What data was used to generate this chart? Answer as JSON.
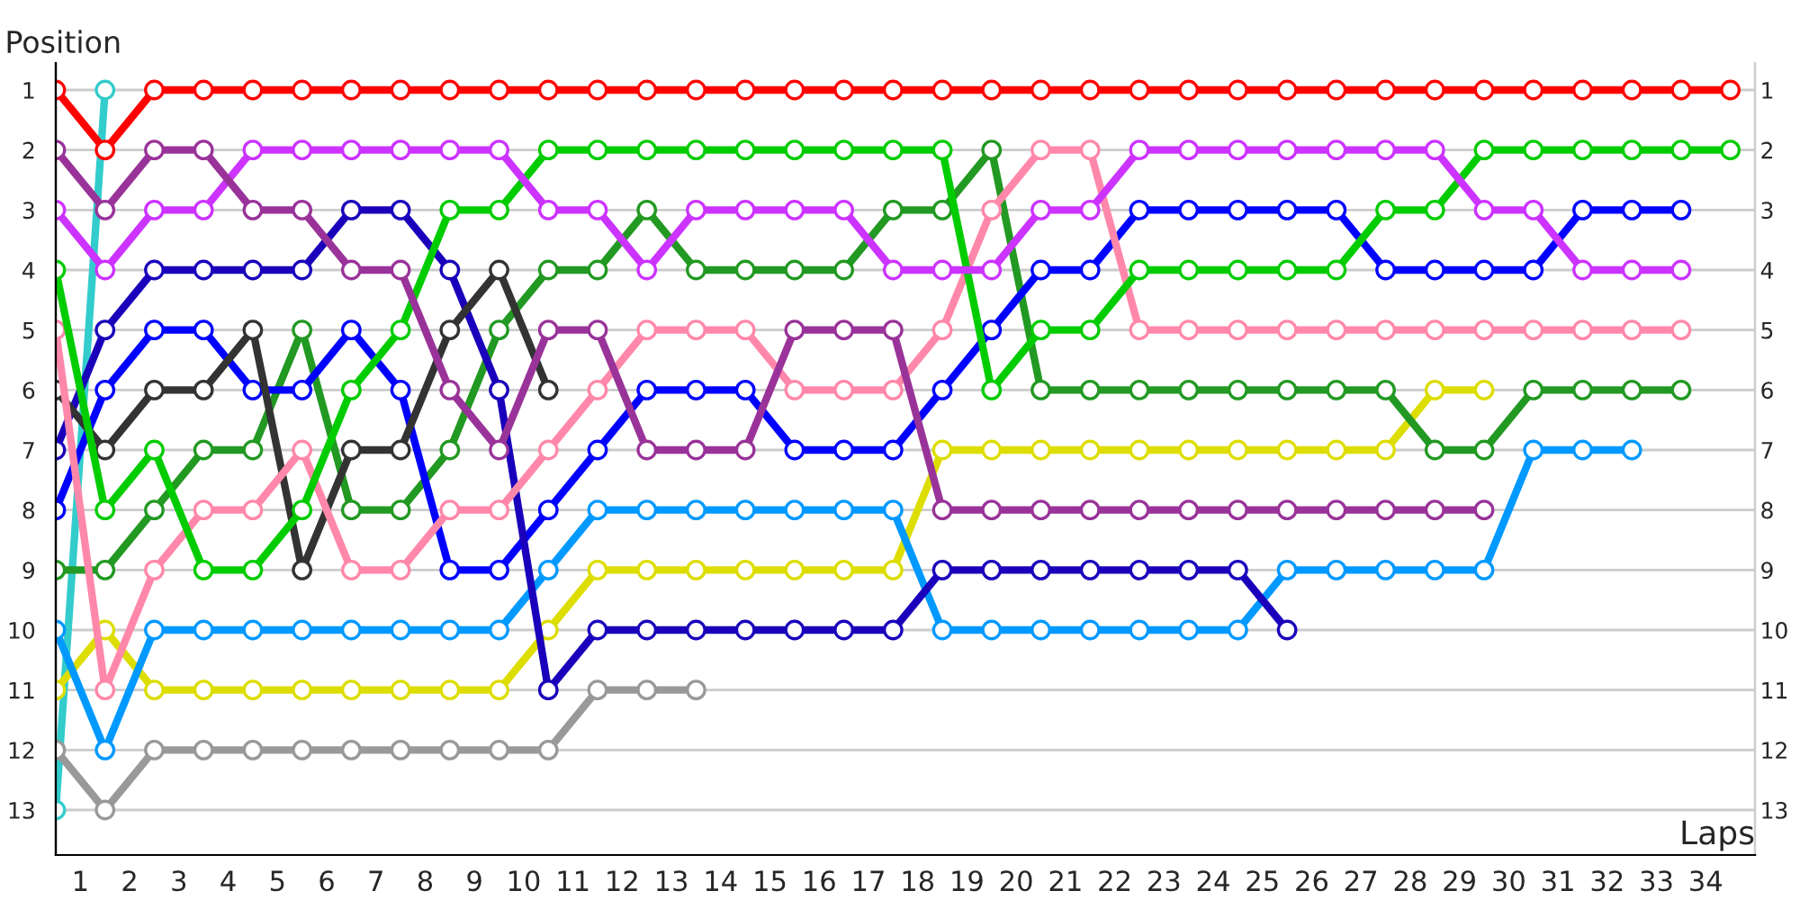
{
  "chart_data": {
    "type": "line",
    "xlabel": "Laps",
    "ylabel": "Position",
    "marker": "circle",
    "grid": true,
    "legend": false,
    "x": [
      0,
      1,
      2,
      3,
      4,
      5,
      6,
      7,
      8,
      9,
      10,
      11,
      12,
      13,
      14,
      15,
      16,
      17,
      18,
      19,
      20,
      21,
      22,
      23,
      24,
      25,
      26,
      27,
      28,
      29,
      30,
      31,
      32,
      33,
      34
    ],
    "xlim": [
      0,
      34.5
    ],
    "xticks": [
      {
        "value": 0.5,
        "label": "1"
      },
      {
        "value": 1.5,
        "label": "2"
      },
      {
        "value": 2.5,
        "label": "3"
      },
      {
        "value": 3.5,
        "label": "4"
      },
      {
        "value": 4.5,
        "label": "5"
      },
      {
        "value": 5.5,
        "label": "6"
      },
      {
        "value": 6.5,
        "label": "7"
      },
      {
        "value": 7.5,
        "label": "8"
      },
      {
        "value": 8.5,
        "label": "9"
      },
      {
        "value": 9.5,
        "label": "10"
      },
      {
        "value": 10.5,
        "label": "11"
      },
      {
        "value": 11.5,
        "label": "12"
      },
      {
        "value": 12.5,
        "label": "13"
      },
      {
        "value": 13.5,
        "label": "14"
      },
      {
        "value": 14.5,
        "label": "15"
      },
      {
        "value": 15.5,
        "label": "16"
      },
      {
        "value": 16.5,
        "label": "17"
      },
      {
        "value": 17.5,
        "label": "18"
      },
      {
        "value": 18.5,
        "label": "19"
      },
      {
        "value": 19.5,
        "label": "20"
      },
      {
        "value": 20.5,
        "label": "21"
      },
      {
        "value": 21.5,
        "label": "22"
      },
      {
        "value": 22.5,
        "label": "23"
      },
      {
        "value": 23.5,
        "label": "24"
      },
      {
        "value": 24.5,
        "label": "25"
      },
      {
        "value": 25.5,
        "label": "26"
      },
      {
        "value": 26.5,
        "label": "27"
      },
      {
        "value": 27.5,
        "label": "28"
      },
      {
        "value": 28.5,
        "label": "29"
      },
      {
        "value": 29.5,
        "label": "30"
      },
      {
        "value": 30.5,
        "label": "31"
      },
      {
        "value": 31.5,
        "label": "32"
      },
      {
        "value": 32.5,
        "label": "33"
      },
      {
        "value": 33.5,
        "label": "34"
      }
    ],
    "ylim": [
      13.75,
      0.55
    ],
    "yticks": [
      1,
      2,
      3,
      4,
      5,
      6,
      7,
      8,
      9,
      10,
      11,
      12,
      13
    ],
    "y2lim": [
      13.75,
      0.55
    ],
    "y2ticks": [
      1,
      2,
      3,
      4,
      5,
      6,
      7,
      8,
      9,
      10,
      11,
      12,
      13
    ],
    "series": [
      {
        "color": "#ff0000",
        "values": [
          1,
          2,
          1,
          1,
          1,
          1,
          1,
          1,
          1,
          1,
          1,
          1,
          1,
          1,
          1,
          1,
          1,
          1,
          1,
          1,
          1,
          1,
          1,
          1,
          1,
          1,
          1,
          1,
          1,
          1,
          1,
          1,
          1,
          1,
          1
        ]
      },
      {
        "color": "#993399",
        "values": [
          2,
          3,
          2,
          2,
          3,
          3,
          4,
          4,
          6,
          7,
          5,
          5,
          7,
          7,
          7,
          5,
          5,
          5,
          8,
          8,
          8,
          8,
          8,
          8,
          8,
          8,
          8,
          8,
          8,
          8,
          null,
          null,
          null,
          null,
          null
        ]
      },
      {
        "color": "#cc33ff",
        "values": [
          3,
          4,
          3,
          3,
          2,
          2,
          2,
          2,
          2,
          2,
          3,
          3,
          4,
          3,
          3,
          3,
          3,
          4,
          4,
          4,
          3,
          3,
          2,
          2,
          2,
          2,
          2,
          2,
          2,
          3,
          3,
          4,
          4,
          4,
          null
        ]
      },
      {
        "color": "#00cc00",
        "values": [
          4,
          8,
          7,
          9,
          9,
          8,
          6,
          5,
          3,
          3,
          2,
          2,
          2,
          2,
          2,
          2,
          2,
          2,
          2,
          6,
          5,
          5,
          4,
          4,
          4,
          4,
          4,
          3,
          3,
          2,
          2,
          2,
          2,
          2,
          2
        ]
      },
      {
        "color": "#ff88aa",
        "values": [
          5,
          11,
          9,
          8,
          8,
          7,
          9,
          9,
          8,
          8,
          7,
          6,
          5,
          5,
          5,
          6,
          6,
          6,
          5,
          3,
          2,
          2,
          5,
          5,
          5,
          5,
          5,
          5,
          5,
          5,
          5,
          5,
          5,
          5,
          null
        ]
      },
      {
        "color": "#333333",
        "values": [
          6,
          7,
          6,
          6,
          5,
          9,
          7,
          7,
          5,
          4,
          6,
          null,
          null,
          null,
          null,
          null,
          null,
          null,
          null,
          null,
          null,
          null,
          null,
          null,
          null,
          null,
          null,
          null,
          null,
          null,
          null,
          null,
          null,
          null,
          null
        ]
      },
      {
        "color": "#1a00bb",
        "values": [
          7,
          5,
          4,
          4,
          4,
          4,
          3,
          3,
          4,
          6,
          11,
          10,
          10,
          10,
          10,
          10,
          10,
          10,
          9,
          9,
          9,
          9,
          9,
          9,
          9,
          10,
          null,
          null,
          null,
          null,
          null,
          null,
          null,
          null,
          null
        ]
      },
      {
        "color": "#0000ff",
        "values": [
          8,
          6,
          5,
          5,
          6,
          6,
          5,
          6,
          9,
          9,
          8,
          7,
          6,
          6,
          6,
          7,
          7,
          7,
          6,
          5,
          4,
          4,
          3,
          3,
          3,
          3,
          3,
          4,
          4,
          4,
          4,
          3,
          3,
          3,
          null
        ]
      },
      {
        "color": "#229922",
        "values": [
          9,
          9,
          8,
          7,
          7,
          5,
          8,
          8,
          7,
          5,
          4,
          4,
          3,
          4,
          4,
          4,
          4,
          3,
          3,
          2,
          6,
          6,
          6,
          6,
          6,
          6,
          6,
          6,
          7,
          7,
          6,
          6,
          6,
          6,
          null
        ]
      },
      {
        "color": "#0099ff",
        "values": [
          10,
          12,
          10,
          10,
          10,
          10,
          10,
          10,
          10,
          10,
          9,
          8,
          8,
          8,
          8,
          8,
          8,
          8,
          10,
          10,
          10,
          10,
          10,
          10,
          10,
          9,
          9,
          9,
          9,
          9,
          7,
          7,
          7,
          null,
          null
        ]
      },
      {
        "color": "#dddd00",
        "values": [
          11,
          10,
          11,
          11,
          11,
          11,
          11,
          11,
          11,
          11,
          10,
          9,
          9,
          9,
          9,
          9,
          9,
          9,
          7,
          7,
          7,
          7,
          7,
          7,
          7,
          7,
          7,
          7,
          6,
          6,
          null,
          null,
          null,
          null,
          null
        ]
      },
      {
        "color": "#999999",
        "values": [
          12,
          13,
          12,
          12,
          12,
          12,
          12,
          12,
          12,
          12,
          12,
          11,
          11,
          11,
          null,
          null,
          null,
          null,
          null,
          null,
          null,
          null,
          null,
          null,
          null,
          null,
          null,
          null,
          null,
          null,
          null,
          null,
          null,
          null,
          null
        ]
      },
      {
        "color": "#33cccc",
        "values": [
          13,
          1,
          null,
          null,
          null,
          null,
          null,
          null,
          null,
          null,
          null,
          null,
          null,
          null,
          null,
          null,
          null,
          null,
          null,
          null,
          null,
          null,
          null,
          null,
          null,
          null,
          null,
          null,
          null,
          null,
          null,
          null,
          null,
          null,
          null
        ]
      }
    ]
  }
}
